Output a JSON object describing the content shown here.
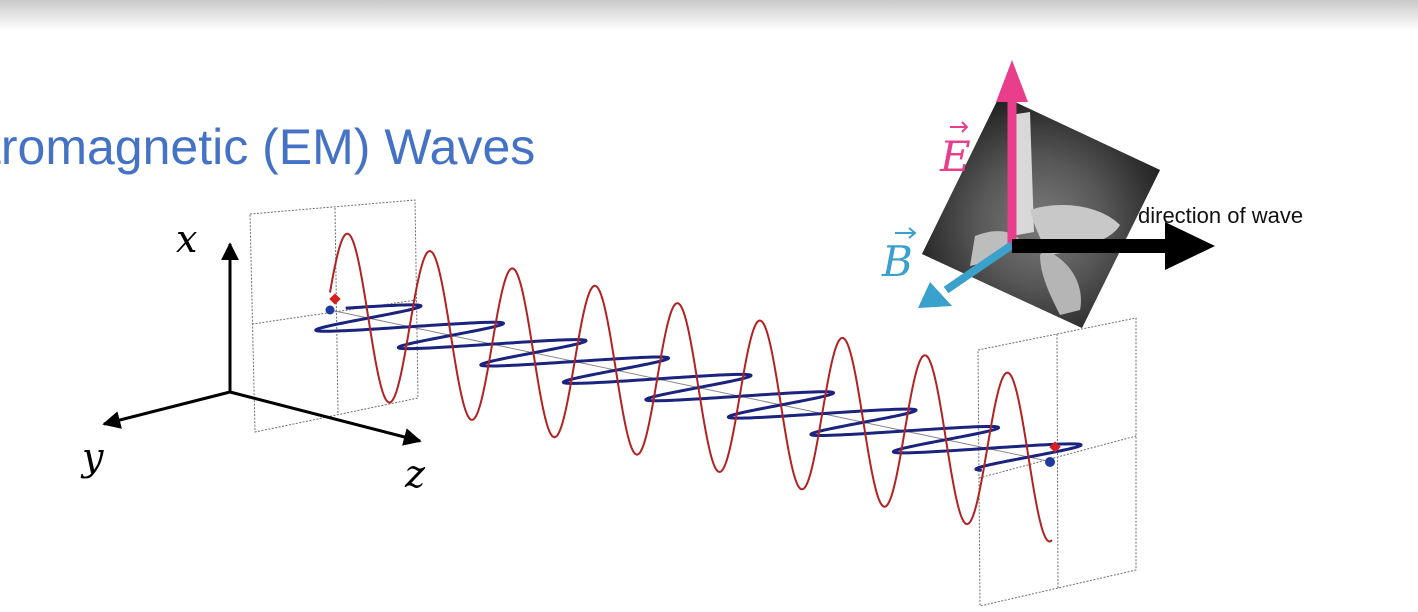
{
  "slide": {
    "title": "ctromagnetic (EM) Waves"
  },
  "axes": {
    "x_label": "x",
    "y_label": "y",
    "z_label": "z"
  },
  "hand_rule": {
    "e_label": "E",
    "b_label": "B",
    "direction_label": "direction of wave"
  },
  "colors": {
    "title": "#4472c4",
    "electric_field_wave": "#b22222",
    "magnetic_field_wave": "#1a237e",
    "e_vector": "#e83e8c",
    "b_vector": "#3aa0cc",
    "direction_arrow": "#000000"
  },
  "icons": [
    "hand-photo"
  ]
}
